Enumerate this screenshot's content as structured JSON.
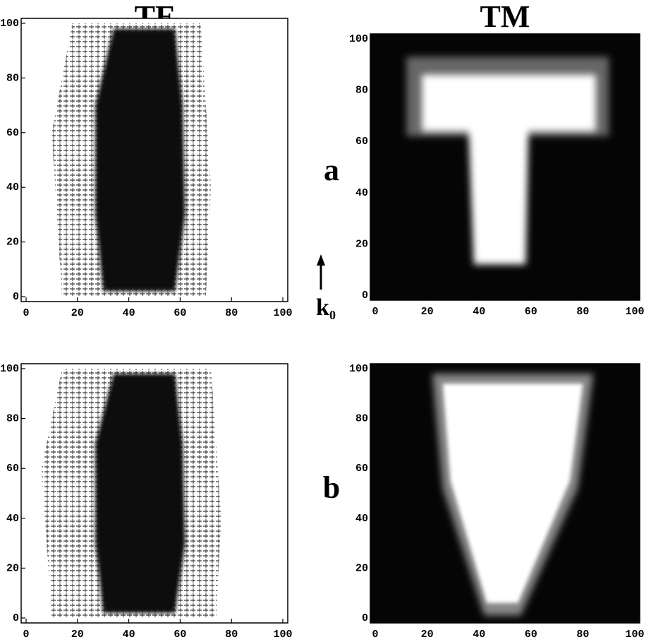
{
  "column_titles": [
    "TE",
    "TM"
  ],
  "row_labels": [
    "a",
    "b"
  ],
  "arrow_label": {
    "text": "k",
    "subscript": "0"
  },
  "chart_data": [
    {
      "type": "image",
      "xlim": [
        0,
        100
      ],
      "ylim": [
        0,
        100
      ],
      "xticks": [
        0,
        20,
        40,
        60,
        80,
        100
      ],
      "yticks": [
        0,
        20,
        40,
        60,
        80,
        100
      ]
    },
    {
      "type": "image",
      "xlim": [
        0,
        100
      ],
      "ylim": [
        0,
        100
      ],
      "xticks": [
        0,
        20,
        40,
        60,
        80,
        100
      ],
      "yticks": [
        0,
        20,
        40,
        60,
        80,
        100
      ]
    },
    {
      "type": "image",
      "xlim": [
        0,
        100
      ],
      "ylim": [
        0,
        100
      ],
      "xticks": [
        0,
        20,
        40,
        60,
        80,
        100
      ],
      "yticks": [
        0,
        20,
        40,
        60,
        80,
        100
      ]
    },
    {
      "type": "image",
      "xlim": [
        0,
        100
      ],
      "ylim": [
        0,
        100
      ],
      "xticks": [
        0,
        20,
        40,
        60,
        80,
        100
      ],
      "yticks": [
        0,
        20,
        40,
        60,
        80,
        100
      ]
    }
  ]
}
